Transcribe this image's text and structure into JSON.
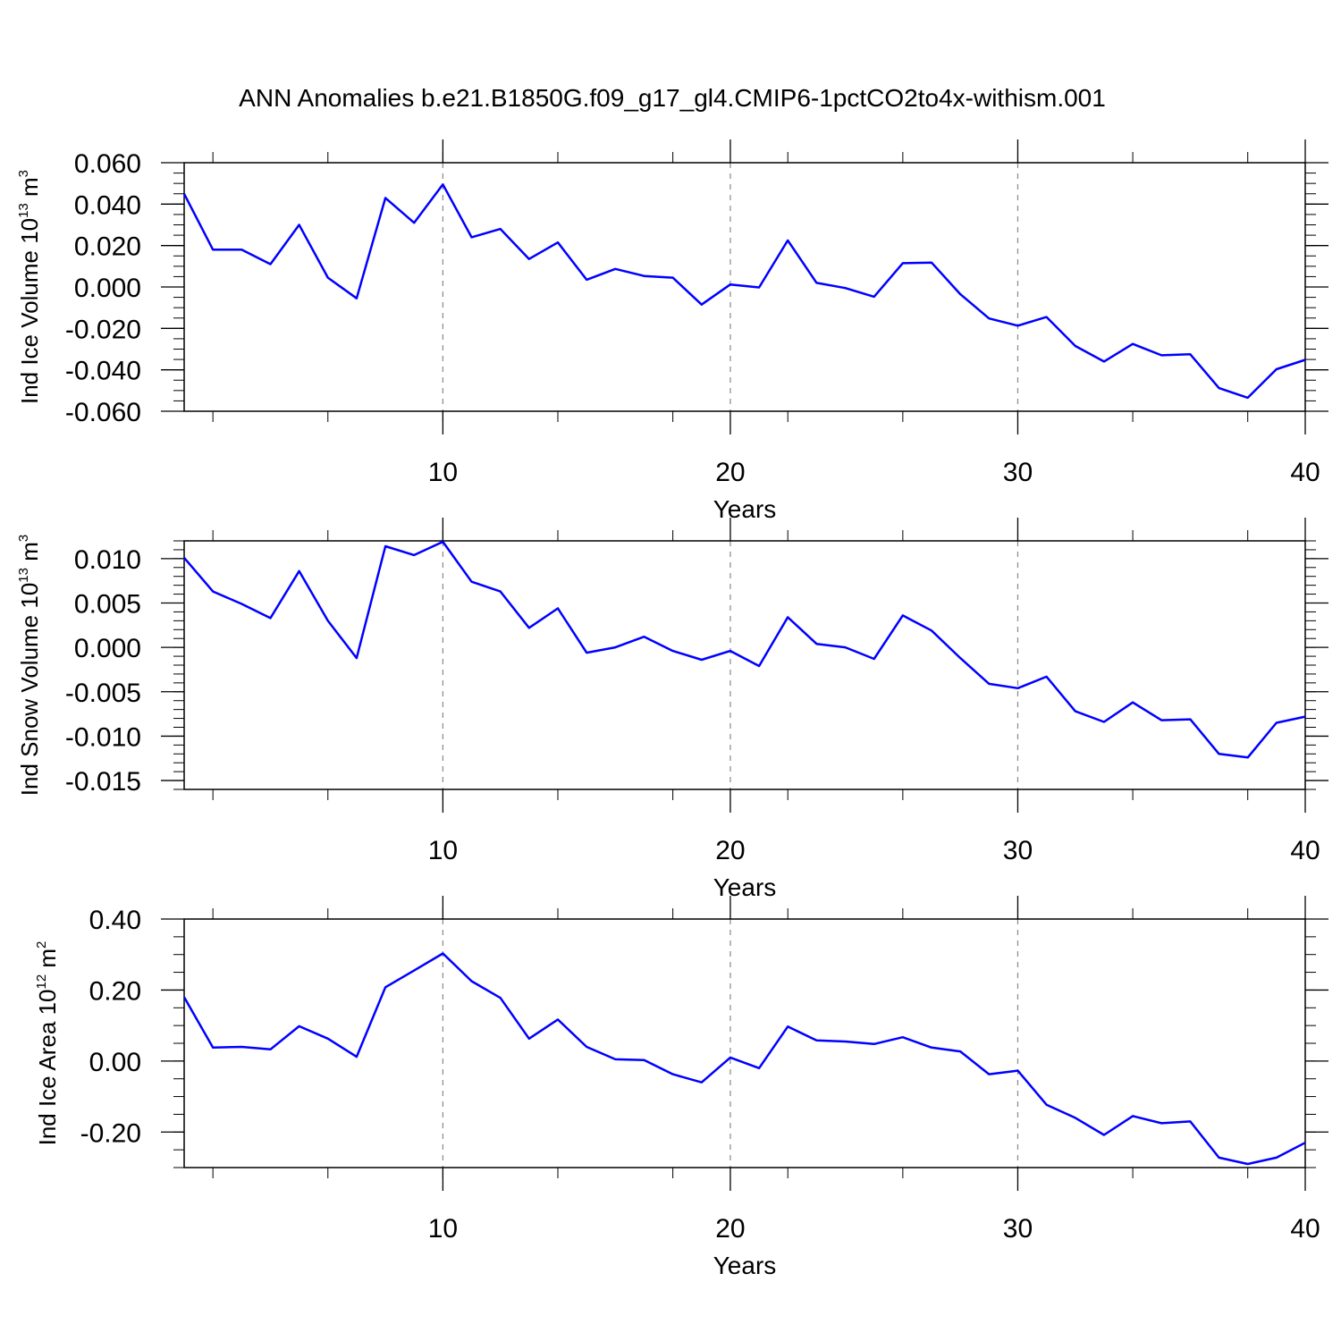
{
  "figure": {
    "title": "ANN Anomalies b.e21.B1850G.f09_g17_gl4.CMIP6-1pctCO2to4x-withism.001"
  },
  "colors": {
    "line": "#0000ff",
    "axes": "#000000",
    "grid": "#888888",
    "background": "#ffffff"
  },
  "chart_data": [
    {
      "type": "line",
      "ylabel_main": "Ind Ice Volume 10",
      "ylabel_exp": "13",
      "ylabel_unit": " m",
      "ylabel_unit_exp": "3",
      "xlabel": "Years",
      "xlim": [
        1,
        40
      ],
      "ylim": [
        -0.06,
        0.06
      ],
      "xticks": [
        10,
        20,
        30,
        40
      ],
      "xminor_step": 1,
      "yticks": [
        -0.06,
        -0.04,
        -0.02,
        0.0,
        0.02,
        0.04,
        0.06
      ],
      "ytick_labels": [
        "-0.060",
        "-0.040",
        "-0.020",
        "0.000",
        "0.020",
        "0.040",
        "0.060"
      ],
      "yminor_step": 0.005,
      "grid": "vertical dashed at major x ticks",
      "x": [
        1,
        2,
        3,
        4,
        5,
        6,
        7,
        8,
        9,
        10,
        11,
        12,
        13,
        14,
        15,
        16,
        17,
        18,
        19,
        20,
        21,
        22,
        23,
        24,
        25,
        26,
        27,
        28,
        29,
        30,
        31,
        32,
        33,
        34,
        35,
        36,
        37,
        38,
        39,
        40
      ],
      "values": [
        0.045,
        0.018,
        0.018,
        0.011,
        0.03,
        0.0045,
        -0.0055,
        0.043,
        0.031,
        0.0495,
        0.024,
        0.028,
        0.0135,
        0.0215,
        0.0035,
        0.0087,
        0.0053,
        0.0045,
        -0.0085,
        0.0012,
        -0.0002,
        0.0225,
        0.002,
        -0.0005,
        -0.0047,
        0.0115,
        0.0118,
        -0.0035,
        -0.0152,
        -0.0187,
        -0.0145,
        -0.0285,
        -0.036,
        -0.0275,
        -0.033,
        -0.0325,
        -0.0488,
        -0.0535,
        -0.0397,
        -0.0352
      ]
    },
    {
      "type": "line",
      "ylabel_main": "Ind Snow Volume 10",
      "ylabel_exp": "13",
      "ylabel_unit": " m",
      "ylabel_unit_exp": "3",
      "xlabel": "Years",
      "xlim": [
        1,
        40
      ],
      "ylim": [
        -0.016,
        0.012
      ],
      "xticks": [
        10,
        20,
        30,
        40
      ],
      "xminor_step": 1,
      "yticks": [
        -0.015,
        -0.01,
        -0.005,
        0.0,
        0.005,
        0.01
      ],
      "ytick_labels": [
        "-0.015",
        "-0.010",
        "-0.005",
        "0.000",
        "0.005",
        "0.010"
      ],
      "yminor_step": 0.001,
      "grid": "vertical dashed at major x ticks",
      "x": [
        1,
        2,
        3,
        4,
        5,
        6,
        7,
        8,
        9,
        10,
        11,
        12,
        13,
        14,
        15,
        16,
        17,
        18,
        19,
        20,
        21,
        22,
        23,
        24,
        25,
        26,
        27,
        28,
        29,
        30,
        31,
        32,
        33,
        34,
        35,
        36,
        37,
        38,
        39,
        40
      ],
      "values": [
        0.0101,
        0.0063,
        0.0049,
        0.0033,
        0.0086,
        0.003,
        -0.0012,
        0.0114,
        0.0104,
        0.0119,
        0.0074,
        0.0063,
        0.0022,
        0.0044,
        -0.0006,
        0.0,
        0.0012,
        -0.0004,
        -0.0014,
        -0.0004,
        -0.0021,
        0.0034,
        0.0004,
        0.0,
        -0.0013,
        0.0036,
        0.0019,
        -0.0012,
        -0.0041,
        -0.0046,
        -0.0033,
        -0.0072,
        -0.0084,
        -0.0062,
        -0.0082,
        -0.0081,
        -0.012,
        -0.0124,
        -0.0085,
        -0.0078
      ]
    },
    {
      "type": "line",
      "ylabel_main": "Ind Ice Area 10",
      "ylabel_exp": "12",
      "ylabel_unit": " m",
      "ylabel_unit_exp": "2",
      "xlabel": "Years",
      "xlim": [
        1,
        40
      ],
      "ylim": [
        -0.3,
        0.4
      ],
      "xticks": [
        10,
        20,
        30,
        40
      ],
      "xminor_step": 1,
      "yticks": [
        -0.2,
        0.0,
        0.2,
        0.4
      ],
      "ytick_labels": [
        "-0.20",
        "0.00",
        "0.20",
        "0.40"
      ],
      "yminor_step": 0.05,
      "grid": "vertical dashed at major x ticks",
      "x": [
        1,
        2,
        3,
        4,
        5,
        6,
        7,
        8,
        9,
        10,
        11,
        12,
        13,
        14,
        15,
        16,
        17,
        18,
        19,
        20,
        21,
        22,
        23,
        24,
        25,
        26,
        27,
        28,
        29,
        30,
        31,
        32,
        33,
        34,
        35,
        36,
        37,
        38,
        39,
        40
      ],
      "values": [
        0.18,
        0.038,
        0.04,
        0.033,
        0.098,
        0.063,
        0.012,
        0.208,
        0.255,
        0.303,
        0.225,
        0.178,
        0.063,
        0.117,
        0.04,
        0.005,
        0.003,
        -0.037,
        -0.06,
        0.01,
        -0.02,
        0.097,
        0.058,
        0.055,
        0.048,
        0.067,
        0.038,
        0.027,
        -0.037,
        -0.027,
        -0.123,
        -0.16,
        -0.208,
        -0.155,
        -0.175,
        -0.17,
        -0.272,
        -0.29,
        -0.272,
        -0.23
      ]
    }
  ]
}
